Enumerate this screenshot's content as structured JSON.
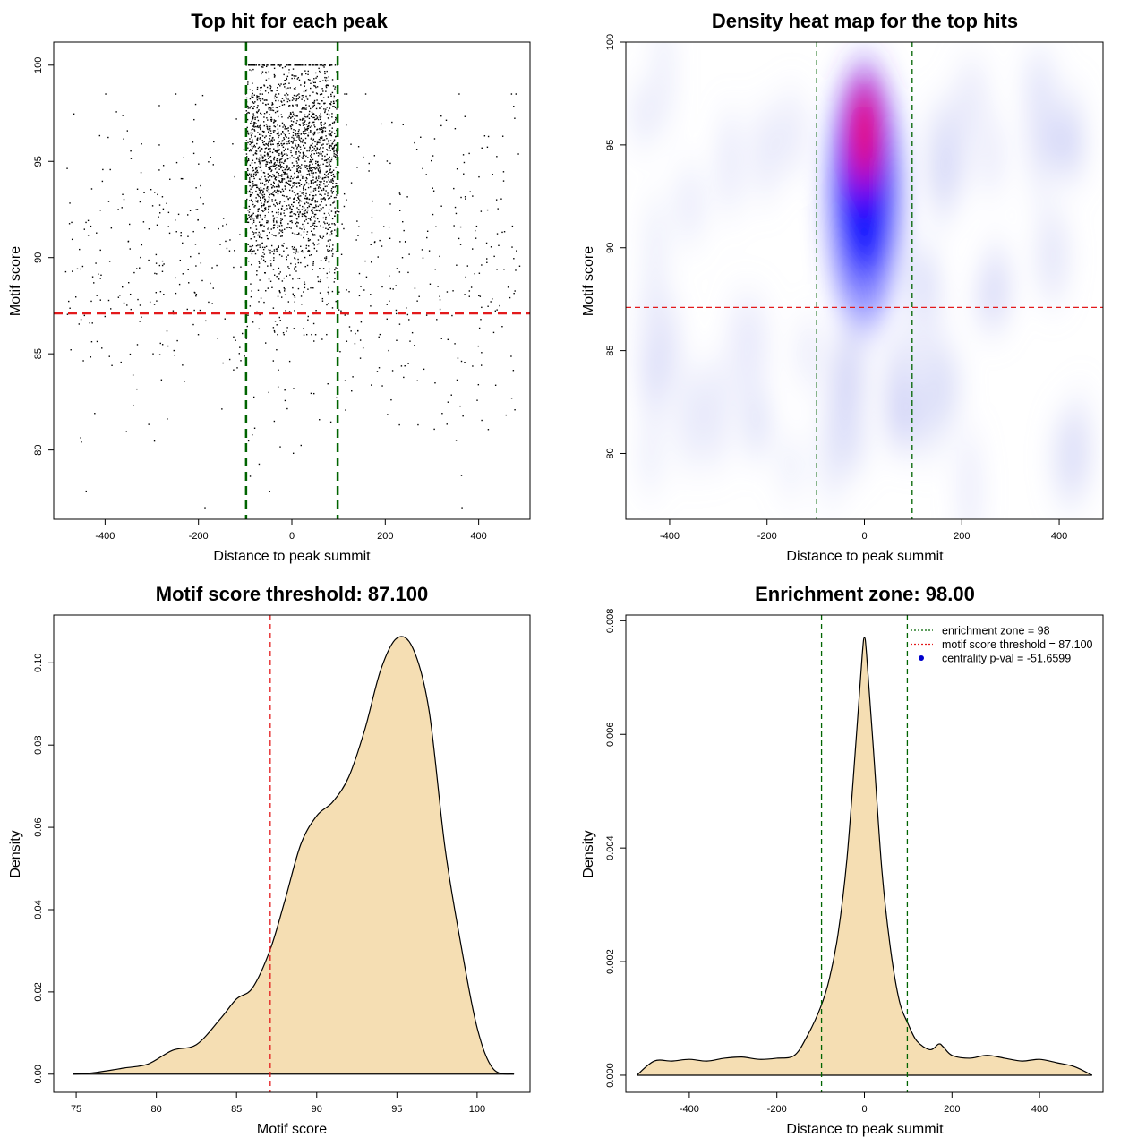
{
  "chart_data": [
    {
      "id": "scatter",
      "type": "scatter",
      "title": "Top hit for each peak",
      "xlabel": "Distance to peak summit",
      "ylabel": "Motif score",
      "xlim": [
        -510,
        510
      ],
      "ylim": [
        76.4,
        101.2
      ],
      "xticks": [
        -400,
        -200,
        0,
        200,
        400
      ],
      "yticks": [
        80,
        85,
        90,
        95,
        100
      ],
      "vlines": [
        -98,
        98
      ],
      "hline": 87.1,
      "vline_color": "#006400",
      "hline_color": "#e31a1c",
      "point_color": "#000000",
      "point_summary": {
        "central_count": 2100,
        "central_x_range": [
          -98,
          98
        ],
        "central_y_range": [
          86.0,
          100.0
        ],
        "central_mode_y": 95,
        "background_count": 700,
        "background_x_range": [
          -490,
          490
        ],
        "background_y_range": [
          77.0,
          98.5
        ]
      }
    },
    {
      "id": "heatmap",
      "type": "heatmap",
      "title": "Density heat map for the top hits",
      "xlabel": "Distance to peak summit",
      "ylabel": "Motif score",
      "xlim": [
        -490,
        490
      ],
      "ylim": [
        76.8,
        100
      ],
      "xticks": [
        -400,
        -200,
        0,
        200,
        400
      ],
      "yticks": [
        80,
        85,
        90,
        95,
        100
      ],
      "vlines": [
        -98,
        98
      ],
      "hline": 87.1,
      "vline_color": "#006400",
      "hline_color": "#e31a1c",
      "colors": [
        "#ffffff",
        "#0000ff",
        "#ff0000"
      ],
      "peak": {
        "x": 0,
        "y": 95.5
      }
    },
    {
      "id": "score_density",
      "type": "area",
      "title": "Motif score threshold: 87.100",
      "xlabel": "Motif score",
      "ylabel": "Density",
      "xlim": [
        73.6,
        103.3
      ],
      "ylim": [
        -0.0044,
        0.1116
      ],
      "xticks": [
        75,
        80,
        85,
        90,
        95,
        100
      ],
      "yticks": [
        0.0,
        0.02,
        0.04,
        0.06,
        0.08,
        0.1
      ],
      "ytick_labels": [
        "0.00",
        "0.02",
        "0.04",
        "0.06",
        "0.08",
        "0.10"
      ],
      "vline": 87.1,
      "vline_color": "#e31a1c",
      "fill": "#f5deb3",
      "x": [
        74.8,
        76,
        78,
        79.5,
        81,
        82.5,
        84,
        85,
        86,
        87.1,
        88,
        89,
        90,
        91,
        92,
        93,
        94,
        95,
        96,
        97,
        98,
        99,
        100,
        101,
        102.3
      ],
      "y": [
        0.0,
        0.0003,
        0.0015,
        0.0025,
        0.0058,
        0.0072,
        0.0135,
        0.0183,
        0.021,
        0.0303,
        0.042,
        0.0558,
        0.0628,
        0.0662,
        0.0723,
        0.0838,
        0.0984,
        0.106,
        0.1035,
        0.0885,
        0.055,
        0.0313,
        0.0113,
        0.0013,
        0.0
      ]
    },
    {
      "id": "distance_density",
      "type": "area",
      "title": "Enrichment zone: 98.00",
      "xlabel": "Distance to peak summit",
      "ylabel": "Density",
      "xlim": [
        -545,
        545
      ],
      "ylim": [
        -0.0003,
        0.0081
      ],
      "xticks": [
        -400,
        -200,
        0,
        200,
        400
      ],
      "yticks": [
        0.0,
        0.002,
        0.004,
        0.006,
        0.008
      ],
      "ytick_labels": [
        "0.000",
        "0.002",
        "0.004",
        "0.006",
        "0.008"
      ],
      "vlines": [
        -98,
        98
      ],
      "vline_color": "#006400",
      "fill": "#f5deb3",
      "x": [
        -520,
        -480,
        -440,
        -400,
        -360,
        -320,
        -280,
        -240,
        -200,
        -160,
        -130,
        -100,
        -80,
        -60,
        -40,
        -20,
        -5,
        0,
        5,
        20,
        40,
        60,
        80,
        100,
        120,
        150,
        170,
        180,
        200,
        240,
        280,
        320,
        360,
        400,
        440,
        480,
        520
      ],
      "y": [
        0.0,
        0.00025,
        0.00025,
        0.00028,
        0.00025,
        0.0003,
        0.00032,
        0.00028,
        0.0003,
        0.00035,
        0.0007,
        0.0012,
        0.0017,
        0.0025,
        0.0038,
        0.0058,
        0.0074,
        0.0077,
        0.0074,
        0.0058,
        0.0036,
        0.0022,
        0.0013,
        0.0009,
        0.0006,
        0.00045,
        0.00055,
        0.0005,
        0.00035,
        0.0003,
        0.00035,
        0.0003,
        0.00025,
        0.00028,
        0.00022,
        0.00015,
        0.0
      ],
      "legend": {
        "position": "top-right",
        "items": [
          {
            "label": "enrichment zone = 98",
            "kind": "line",
            "color": "#006400"
          },
          {
            "label": "motif score threshold = 87.100",
            "kind": "line",
            "color": "#e31a1c"
          },
          {
            "label": "centrality p-val = -51.6599",
            "kind": "point",
            "color": "#0000cc"
          }
        ]
      }
    }
  ]
}
